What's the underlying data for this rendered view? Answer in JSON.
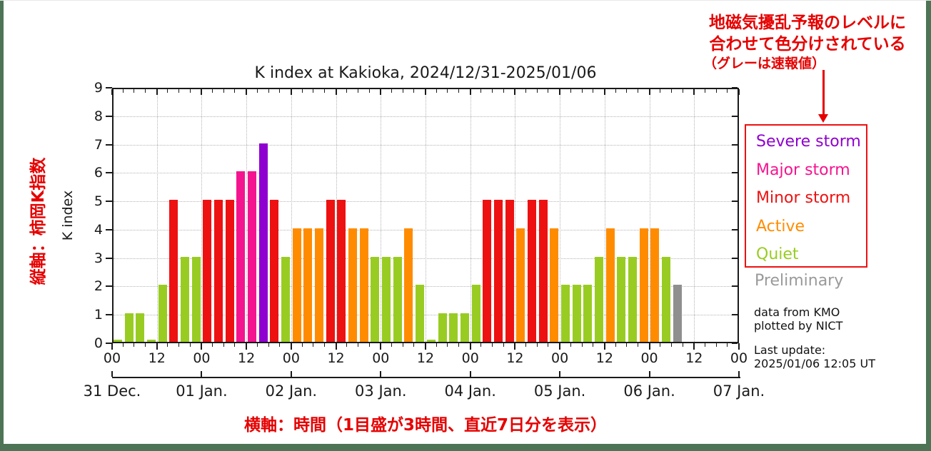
{
  "frame_color": "#4c7455",
  "annotation_color": "#e60000",
  "annotations": {
    "top_line1": "地磁気擾乱予報のレベルに",
    "top_line2": "合わせて色分けされている",
    "top_line3": "（グレーは速報値）",
    "left_vertical": "縦軸：柿岡K指数",
    "bottom": "横軸：時間（1目盛が3時間、直近7日分を表示）"
  },
  "legend": {
    "items": [
      {
        "label": "Severe storm",
        "color": "#8f00d0"
      },
      {
        "label": "Major storm",
        "color": "#f5148f"
      },
      {
        "label": "Minor storm",
        "color": "#ee1111"
      },
      {
        "label": "Active",
        "color": "#ff8c00"
      },
      {
        "label": "Quiet",
        "color": "#99cc22"
      }
    ],
    "outside_item": {
      "label": "Preliminary",
      "color": "#9a9a9a"
    },
    "box_border_color": "#ee1111"
  },
  "credits": {
    "line1": "data from KMO",
    "line2": "plotted by NICT"
  },
  "last_update": {
    "label": "Last update:",
    "value": "2025/01/06 12:05 UT"
  },
  "chart_data": {
    "type": "bar",
    "title": "K index at Kakioka, 2024/12/31-2025/01/06",
    "ylabel": "K index",
    "ylim": [
      0,
      9
    ],
    "yticks": [
      0,
      1,
      2,
      3,
      4,
      5,
      6,
      7,
      8,
      9
    ],
    "grid": true,
    "hours_per_bar": 3,
    "bars_per_day": 8,
    "hour_labels_cycle": [
      "00",
      "12"
    ],
    "days": [
      {
        "date": "31 Dec.",
        "k": [
          0,
          1,
          1,
          0,
          2,
          5,
          3,
          3
        ]
      },
      {
        "date": "01 Jan.",
        "k": [
          5,
          5,
          5,
          6,
          6,
          7,
          5,
          3
        ]
      },
      {
        "date": "02 Jan.",
        "k": [
          4,
          4,
          4,
          5,
          5,
          4,
          4,
          3
        ]
      },
      {
        "date": "03 Jan.",
        "k": [
          3,
          3,
          4,
          2,
          0,
          1,
          1,
          1
        ]
      },
      {
        "date": "04 Jan.",
        "k": [
          2,
          5,
          5,
          5,
          4,
          5,
          5,
          4
        ]
      },
      {
        "date": "05 Jan.",
        "k": [
          2,
          2,
          2,
          3,
          4,
          3,
          3,
          4
        ]
      },
      {
        "date": "06 Jan.",
        "k": [
          4,
          3,
          2,
          null,
          null,
          null,
          null,
          null
        ],
        "preliminary_slots": [
          2
        ]
      },
      {
        "date": "07 Jan.",
        "k": []
      }
    ],
    "level_colors": {
      "quiet": "#99cc22",
      "active": "#ff8c00",
      "minor_storm": "#ee1111",
      "major_storm": "#f5148f",
      "severe_storm": "#8f00d0",
      "preliminary": "#8f8f8f"
    },
    "level_thresholds": {
      "quiet": "K<=3",
      "active": "K=4",
      "minor_storm": "K=5",
      "major_storm": "K=6",
      "severe_storm": "K>=7"
    }
  }
}
